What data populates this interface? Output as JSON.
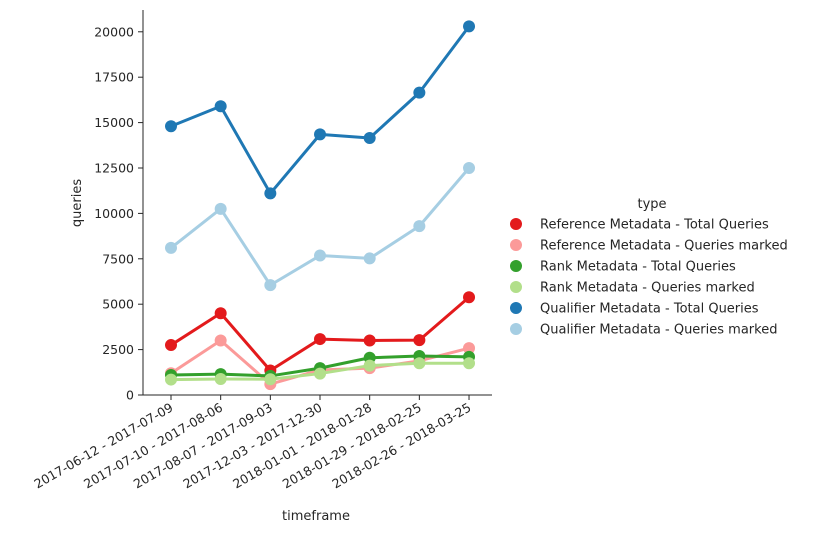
{
  "chart_data": {
    "type": "line",
    "xlabel": "timeframe",
    "ylabel": "queries",
    "ylim": [
      0,
      21200
    ],
    "yticks": [
      0,
      2500,
      5000,
      7500,
      10000,
      12500,
      15000,
      17500,
      20000
    ],
    "grid": false,
    "legend_title": "type",
    "legend_position": "right",
    "categories": [
      "2017-06-12 - 2017-07-09",
      "2017-07-10 - 2017-08-06",
      "2017-08-07 - 2017-09-03",
      "2017-12-03 - 2017-12-30",
      "2018-01-01 - 2018-01-28",
      "2018-01-29 - 2018-02-25",
      "2018-02-26 - 2018-03-25"
    ],
    "series": [
      {
        "name": "Reference Metadata - Total Queries",
        "color": "#e31a1c",
        "values": [
          2750,
          4500,
          1350,
          3080,
          3000,
          3020,
          5380
        ]
      },
      {
        "name": "Reference Metadata - Queries marked",
        "color": "#fb9a99",
        "values": [
          1200,
          3000,
          600,
          1380,
          1480,
          1880,
          2580
        ]
      },
      {
        "name": "Rank Metadata - Total Queries",
        "color": "#33a02c",
        "values": [
          1100,
          1150,
          1050,
          1480,
          2050,
          2150,
          2100
        ]
      },
      {
        "name": "Rank Metadata - Queries marked",
        "color": "#b2df8a",
        "values": [
          850,
          880,
          870,
          1180,
          1620,
          1750,
          1750
        ]
      },
      {
        "name": "Qualifier Metadata - Total Queries",
        "color": "#1f78b4",
        "values": [
          14800,
          15900,
          11100,
          14350,
          14150,
          16650,
          20300
        ]
      },
      {
        "name": "Qualifier Metadata - Queries marked",
        "color": "#a6cee3",
        "values": [
          8100,
          10250,
          6050,
          7680,
          7520,
          9300,
          12500
        ]
      }
    ]
  }
}
